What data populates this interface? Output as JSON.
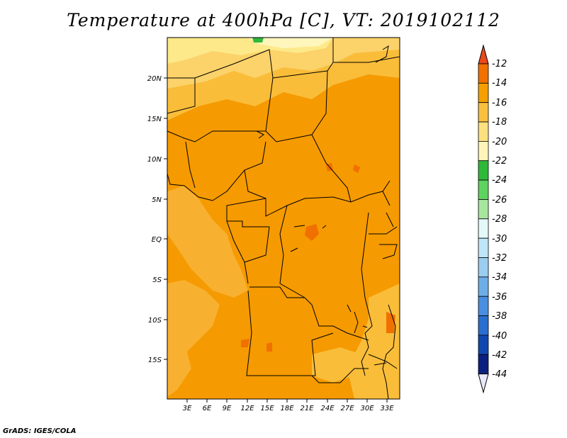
{
  "title": "Temperature at 400hPa [C], VT: 2019102112",
  "credit": "GrADS: IGES/COLA",
  "map": {
    "lat_labels": [
      "20N",
      "15N",
      "10N",
      "5N",
      "EQ",
      "5S",
      "10S",
      "15S"
    ],
    "lon_labels": [
      "3E",
      "6E",
      "9E",
      "12E",
      "15E",
      "18E",
      "21E",
      "24E",
      "27E",
      "30E",
      "33E"
    ]
  },
  "colorbar": {
    "labels": [
      "-12",
      "-14",
      "-16",
      "-18",
      "-20",
      "-22",
      "-24",
      "-26",
      "-28",
      "-30",
      "-32",
      "-34",
      "-36",
      "-38",
      "-40",
      "-42",
      "-44"
    ],
    "colors": [
      "#e84a1c",
      "#f07000",
      "#f5a000",
      "#f9c040",
      "#fde080",
      "#fff5b8",
      "#2fb93a",
      "#5fd35f",
      "#a8e6a0",
      "#e4f8f8",
      "#bfe6f7",
      "#9bcdf0",
      "#6eaee8",
      "#4a8ee0",
      "#2a6fd0",
      "#1048b0",
      "#0a2080",
      "#0a0a60"
    ]
  }
}
